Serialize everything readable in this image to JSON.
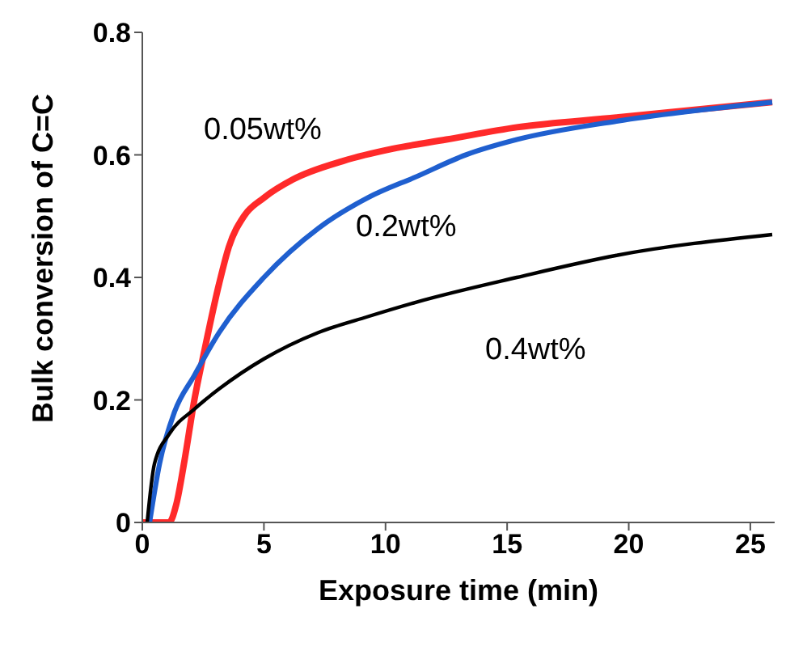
{
  "chart_data": {
    "type": "line",
    "xlabel": "Exposure time (min)",
    "ylabel": "Bulk conversion of C=C",
    "xlim": [
      0,
      26
    ],
    "ylim": [
      0,
      0.8
    ],
    "xticks": [
      0,
      5,
      10,
      15,
      20,
      25
    ],
    "yticks": [
      0,
      0.2,
      0.4,
      0.6,
      0.8
    ],
    "grid": false,
    "legend": false,
    "marker": "none",
    "line_style": "solid",
    "series": [
      {
        "name": "0.05wt%",
        "color": "#ff2a2a",
        "x": [
          0,
          1.1,
          1.4,
          1.73,
          2.14,
          2.55,
          3.16,
          3.56,
          4.18,
          5,
          6.2,
          8.25,
          10.3,
          12.5,
          15.4,
          19.5,
          25.9
        ],
        "values": [
          0,
          0,
          0.03,
          0.1,
          0.2,
          0.28,
          0.39,
          0.45,
          0.5,
          0.53,
          0.56,
          0.59,
          0.61,
          0.625,
          0.645,
          0.661,
          0.686
        ]
      },
      {
        "name": "0.2wt%",
        "color": "#1f5fcf",
        "x": [
          0.3,
          0.71,
          1.32,
          2.14,
          3.16,
          5,
          7.23,
          9.27,
          11.3,
          13.3,
          15.4,
          19.5,
          25.9
        ],
        "values": [
          0,
          0.096,
          0.18,
          0.24,
          0.31,
          0.4,
          0.48,
          0.53,
          0.565,
          0.6,
          0.625,
          0.655,
          0.686
        ]
      },
      {
        "name": "0.4wt%",
        "color": "#000000",
        "x": [
          0.2,
          0.5,
          1.12,
          2.14,
          3.16,
          5,
          7.23,
          9.27,
          11.3,
          15.4,
          19.5,
          25.9
        ],
        "values": [
          0,
          0.096,
          0.145,
          0.185,
          0.218,
          0.267,
          0.31,
          0.336,
          0.36,
          0.4,
          0.436,
          0.47
        ]
      }
    ]
  }
}
